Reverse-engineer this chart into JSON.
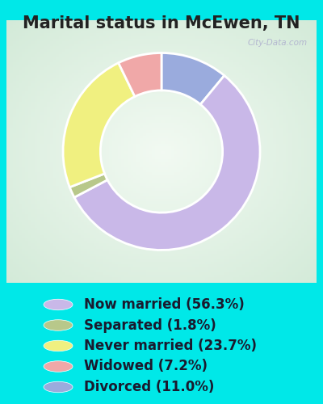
{
  "title": "Marital status in McEwen, TN",
  "slices": [
    56.3,
    1.8,
    23.7,
    7.2,
    11.0
  ],
  "labels": [
    "Now married (56.3%)",
    "Separated (1.8%)",
    "Never married (23.7%)",
    "Widowed (7.2%)",
    "Divorced (11.0%)"
  ],
  "colors": [
    "#c9b8e8",
    "#b8c88a",
    "#f0f080",
    "#f0a8a8",
    "#9aabdd"
  ],
  "legend_colors": [
    "#c9b8e8",
    "#b8c88a",
    "#f0f080",
    "#f0a8a8",
    "#9aabdd"
  ],
  "bg_cyan": "#00e8e8",
  "bg_panel_color": "#d4edd8",
  "title_fontsize": 15,
  "legend_fontsize": 12,
  "watermark": "City-Data.com",
  "donut_width": 0.38,
  "start_angle": 90,
  "order": [
    4,
    0,
    1,
    2,
    3
  ]
}
